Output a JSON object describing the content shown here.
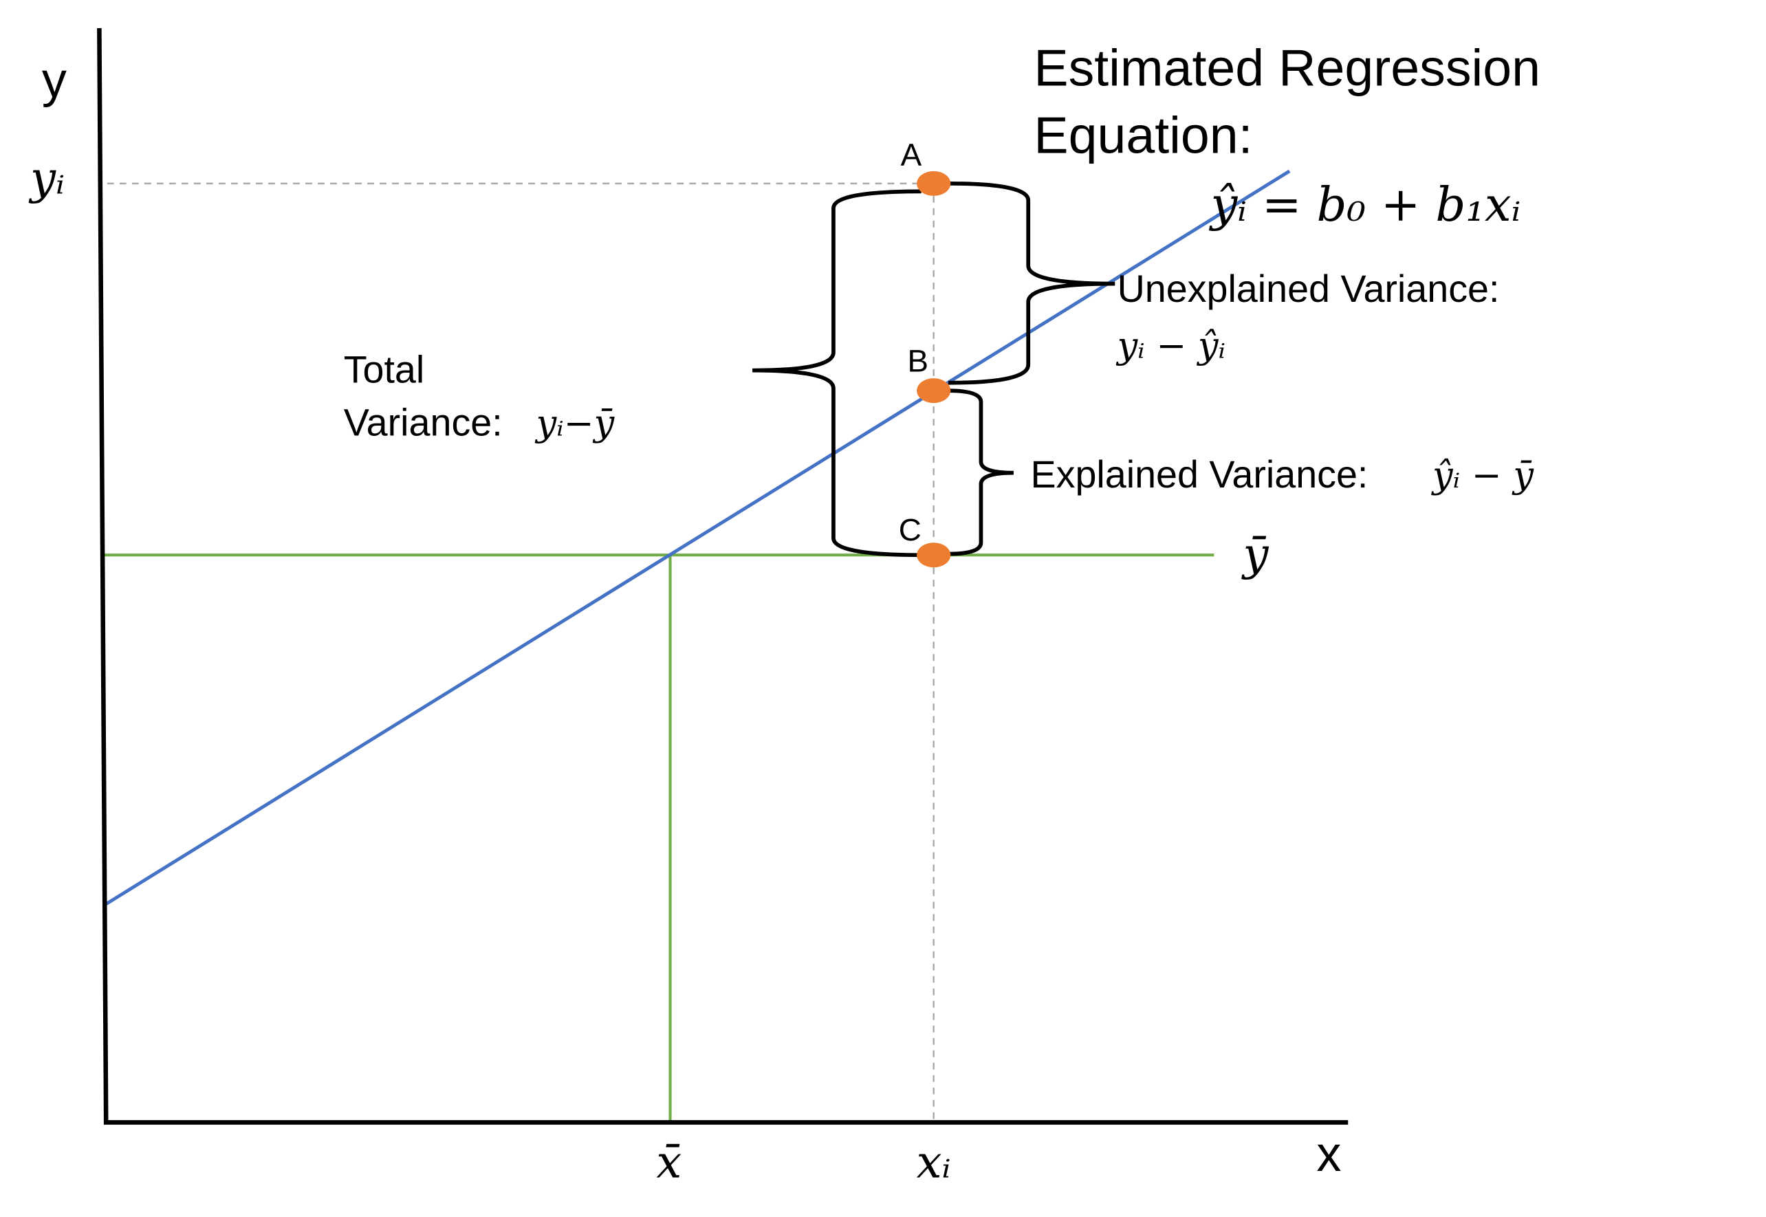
{
  "axes": {
    "y_label": "y",
    "x_label": "x",
    "y_tick": "yᵢ",
    "x_ticks": [
      "x̄",
      "xᵢ"
    ]
  },
  "points": [
    {
      "label": "A"
    },
    {
      "label": "B"
    },
    {
      "label": "C"
    }
  ],
  "mean_line_label": "ȳ",
  "regression": {
    "title": [
      "Estimated Regression",
      "Equation:"
    ],
    "equation": "ŷᵢ =  b₀ +  b₁xᵢ"
  },
  "annotations": {
    "unexplained": {
      "label": "Unexplained Variance:",
      "formula": "yᵢ  − ŷᵢ"
    },
    "total": {
      "label": [
        "Total",
        "Variance:"
      ],
      "formula": "yᵢ−ȳ"
    },
    "explained": {
      "label": "Explained Variance:",
      "formula": "ŷᵢ − ȳ"
    }
  }
}
